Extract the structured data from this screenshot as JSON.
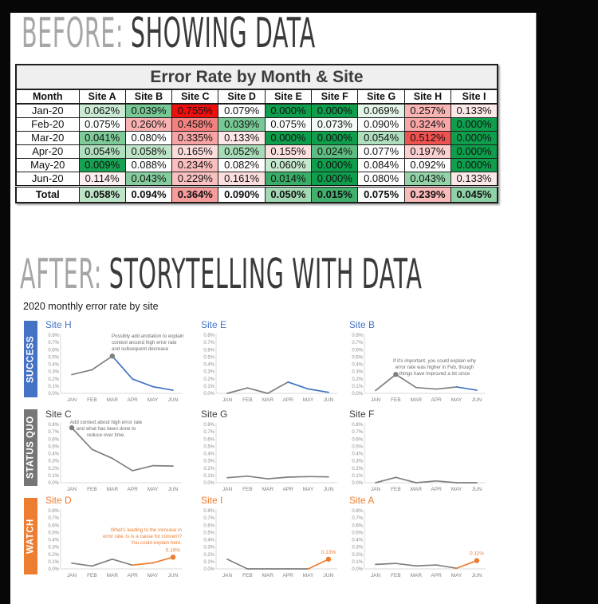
{
  "before": {
    "label_prefix": "BEFORE:",
    "label_main": "SHOWING DATA"
  },
  "after": {
    "label_prefix": "AFTER:",
    "label_main": "STORYTELLING WITH DATA",
    "subtitle": "2020 monthly error rate by site",
    "yticks": [
      "0.8%",
      "0.7%",
      "0.6%",
      "0.5%",
      "0.4%",
      "0.3%",
      "0.2%",
      "0.1%",
      "0.0%"
    ],
    "groups": [
      {
        "label": "SUCCESS",
        "color": "#4472C4"
      },
      {
        "label": "STATUS QUO",
        "color": "#767676"
      },
      {
        "label": "WATCH",
        "color": "#ED7D31"
      }
    ]
  },
  "colors": {
    "success": "#4472C4",
    "status_quo": "#767676",
    "watch": "#ED7D31",
    "line_gray": "#7f7f7f",
    "title_gray": "#404040",
    "annotation_gray": "#6b6b6b"
  },
  "chart_data": [
    {
      "type": "table",
      "title": "Error Rate by Month & Site",
      "columns": [
        "Month",
        "Site A",
        "Site B",
        "Site C",
        "Site D",
        "Site E",
        "Site F",
        "Site G",
        "Site H",
        "Site I"
      ],
      "rows": [
        {
          "label": "Jan-20",
          "cells": [
            {
              "v": "0.062%",
              "bg": "#CBEAD3"
            },
            {
              "v": "0.039%",
              "bg": "#78C896"
            },
            {
              "v": "0.755%",
              "bg": "#EE0E0E"
            },
            {
              "v": "0.079%",
              "bg": "#FFFFFF"
            },
            {
              "v": "0.000%",
              "bg": "#0E9E4C"
            },
            {
              "v": "0.000%",
              "bg": "#0E9E4C"
            },
            {
              "v": "0.069%",
              "bg": "#E3F4E8"
            },
            {
              "v": "0.257%",
              "bg": "#F9B4B4"
            },
            {
              "v": "0.133%",
              "bg": "#FDE8E8"
            }
          ]
        },
        {
          "label": "Feb-20",
          "cells": [
            {
              "v": "0.075%",
              "bg": "#FAFDFB"
            },
            {
              "v": "0.260%",
              "bg": "#F9B2B2"
            },
            {
              "v": "0.458%",
              "bg": "#F48080"
            },
            {
              "v": "0.039%",
              "bg": "#78C896"
            },
            {
              "v": "0.075%",
              "bg": "#FAFDFB"
            },
            {
              "v": "0.073%",
              "bg": "#F0F9F3"
            },
            {
              "v": "0.090%",
              "bg": "#FFFFFF"
            },
            {
              "v": "0.324%",
              "bg": "#F8A6A6"
            },
            {
              "v": "0.000%",
              "bg": "#0E9E4C"
            }
          ]
        },
        {
          "label": "Mar-20",
          "cells": [
            {
              "v": "0.041%",
              "bg": "#7ECA99"
            },
            {
              "v": "0.080%",
              "bg": "#FFFFFF"
            },
            {
              "v": "0.335%",
              "bg": "#F8A4A4"
            },
            {
              "v": "0.133%",
              "bg": "#FDE8E8"
            },
            {
              "v": "0.000%",
              "bg": "#0E9E4C"
            },
            {
              "v": "0.000%",
              "bg": "#0E9E4C"
            },
            {
              "v": "0.054%",
              "bg": "#B0DFBE"
            },
            {
              "v": "0.512%",
              "bg": "#EF5350"
            },
            {
              "v": "0.000%",
              "bg": "#0E9E4C"
            }
          ]
        },
        {
          "label": "Apr-20",
          "cells": [
            {
              "v": "0.054%",
              "bg": "#B0DFBE"
            },
            {
              "v": "0.058%",
              "bg": "#BFE5C9"
            },
            {
              "v": "0.165%",
              "bg": "#FDDCDC"
            },
            {
              "v": "0.052%",
              "bg": "#A8DCB8"
            },
            {
              "v": "0.155%",
              "bg": "#FDE0E0"
            },
            {
              "v": "0.024%",
              "bg": "#5DBD80"
            },
            {
              "v": "0.077%",
              "bg": "#FFFFFF"
            },
            {
              "v": "0.197%",
              "bg": "#FCD0D0"
            },
            {
              "v": "0.000%",
              "bg": "#0E9E4C"
            }
          ]
        },
        {
          "label": "May-20",
          "cells": [
            {
              "v": "0.009%",
              "bg": "#17A253"
            },
            {
              "v": "0.088%",
              "bg": "#FFFFFF"
            },
            {
              "v": "0.234%",
              "bg": "#FABEBE"
            },
            {
              "v": "0.082%",
              "bg": "#FFFFFF"
            },
            {
              "v": "0.060%",
              "bg": "#C6E8CE"
            },
            {
              "v": "0.000%",
              "bg": "#0E9E4C"
            },
            {
              "v": "0.084%",
              "bg": "#FFFFFF"
            },
            {
              "v": "0.092%",
              "bg": "#FFFEFE"
            },
            {
              "v": "0.000%",
              "bg": "#0E9E4C"
            }
          ]
        },
        {
          "label": "Jun-20",
          "cells": [
            {
              "v": "0.114%",
              "bg": "#FEF0F0"
            },
            {
              "v": "0.043%",
              "bg": "#85CD9E"
            },
            {
              "v": "0.229%",
              "bg": "#FAC0C0"
            },
            {
              "v": "0.161%",
              "bg": "#FDDEDE"
            },
            {
              "v": "0.014%",
              "bg": "#3AAE68"
            },
            {
              "v": "0.000%",
              "bg": "#0E9E4C"
            },
            {
              "v": "0.080%",
              "bg": "#FFFFFF"
            },
            {
              "v": "0.043%",
              "bg": "#92D3A8"
            },
            {
              "v": "0.133%",
              "bg": "#FDE8E8"
            }
          ]
        },
        {
          "label": "Total",
          "is_total": true,
          "cells": [
            {
              "v": "0.058%",
              "bg": "#BFE5C9"
            },
            {
              "v": "0.094%",
              "bg": "#FFFCFC"
            },
            {
              "v": "0.364%",
              "bg": "#F79C9C"
            },
            {
              "v": "0.090%",
              "bg": "#FFFFFF"
            },
            {
              "v": "0.050%",
              "bg": "#A2D9B4"
            },
            {
              "v": "0.015%",
              "bg": "#40B06C"
            },
            {
              "v": "0.075%",
              "bg": "#FAFDFB"
            },
            {
              "v": "0.239%",
              "bg": "#FABBBB"
            },
            {
              "v": "0.045%",
              "bg": "#8ED1A5"
            }
          ]
        }
      ]
    },
    {
      "type": "line",
      "title": "Site H",
      "group": "SUCCESS",
      "title_color": "#4472C4",
      "x": [
        "JAN",
        "FEB",
        "MAR",
        "APR",
        "MAY",
        "JUN"
      ],
      "values": [
        0.257,
        0.324,
        0.512,
        0.197,
        0.092,
        0.043
      ],
      "ylim": [
        0,
        0.8
      ],
      "ylabel": "",
      "xlabel": "",
      "highlight_from": 2,
      "highlight_color": "#4472C4",
      "marker_index": 2,
      "marker_color": "#7f7f7f",
      "value_label": null,
      "annotation": {
        "lines": [
          "Possibly add anotation to explain",
          "context around high error rate",
          "and subsequent decrease"
        ],
        "color": "#6b6b6b"
      }
    },
    {
      "type": "line",
      "title": "Site E",
      "group": "SUCCESS",
      "title_color": "#4472C4",
      "x": [
        "JAN",
        "FEB",
        "MAR",
        "APR",
        "MAY",
        "JUN"
      ],
      "values": [
        0.0,
        0.075,
        0.0,
        0.155,
        0.06,
        0.014
      ],
      "ylim": [
        0,
        0.8
      ],
      "ylabel": "",
      "xlabel": "",
      "highlight_from": 3,
      "highlight_color": "#4472C4",
      "marker_index": null,
      "marker_color": null,
      "value_label": null,
      "annotation": null
    },
    {
      "type": "line",
      "title": "Site B",
      "group": "SUCCESS",
      "title_color": "#4472C4",
      "x": [
        "JAN",
        "FEB",
        "MAR",
        "APR",
        "MAY",
        "JUN"
      ],
      "values": [
        0.039,
        0.26,
        0.08,
        0.058,
        0.088,
        0.043
      ],
      "ylim": [
        0,
        0.8
      ],
      "ylabel": "",
      "xlabel": "",
      "highlight_from": 4,
      "highlight_color": "#4472C4",
      "marker_index": 1,
      "marker_color": "#7f7f7f",
      "value_label": null,
      "annotation": {
        "lines": [
          "If it's important, you could explain why",
          "error rate was higher in Feb, though",
          "things have improved a lot since"
        ],
        "color": "#6b6b6b"
      }
    },
    {
      "type": "line",
      "title": "Site C",
      "group": "STATUS QUO",
      "title_color": "#404040",
      "x": [
        "JAN",
        "FEB",
        "MAR",
        "APR",
        "MAY",
        "JUN"
      ],
      "values": [
        0.755,
        0.458,
        0.335,
        0.165,
        0.234,
        0.229
      ],
      "ylim": [
        0,
        0.8
      ],
      "ylabel": "",
      "xlabel": "",
      "highlight_from": null,
      "highlight_color": null,
      "marker_index": 0,
      "marker_color": "#7f7f7f",
      "value_label": null,
      "annotation": {
        "lines": [
          "Add context about high error rate",
          "and what has been done to",
          "reduce over time."
        ],
        "color": "#6b6b6b"
      }
    },
    {
      "type": "line",
      "title": "Site G",
      "group": "STATUS QUO",
      "title_color": "#404040",
      "x": [
        "JAN",
        "FEB",
        "MAR",
        "APR",
        "MAY",
        "JUN"
      ],
      "values": [
        0.069,
        0.09,
        0.054,
        0.077,
        0.084,
        0.08
      ],
      "ylim": [
        0,
        0.8
      ],
      "ylabel": "",
      "xlabel": "",
      "highlight_from": null,
      "highlight_color": null,
      "marker_index": null,
      "marker_color": null,
      "value_label": null,
      "annotation": null
    },
    {
      "type": "line",
      "title": "Site F",
      "group": "STATUS QUO",
      "title_color": "#404040",
      "x": [
        "JAN",
        "FEB",
        "MAR",
        "APR",
        "MAY",
        "JUN"
      ],
      "values": [
        0.0,
        0.073,
        0.0,
        0.024,
        0.0,
        0.0
      ],
      "ylim": [
        0,
        0.8
      ],
      "ylabel": "",
      "xlabel": "",
      "highlight_from": null,
      "highlight_color": null,
      "marker_index": null,
      "marker_color": null,
      "value_label": null,
      "annotation": null
    },
    {
      "type": "line",
      "title": "Site D",
      "group": "WATCH",
      "title_color": "#ED7D31",
      "x": [
        "JAN",
        "FEB",
        "MAR",
        "APR",
        "MAY",
        "JUN"
      ],
      "values": [
        0.079,
        0.039,
        0.133,
        0.052,
        0.082,
        0.161
      ],
      "ylim": [
        0,
        0.8
      ],
      "ylabel": "",
      "xlabel": "",
      "highlight_from": 3,
      "highlight_color": "#ED7D31",
      "marker_index": 5,
      "marker_color": "#ED7D31",
      "value_label": "0.16%",
      "annotation": {
        "lines": [
          "What's leading to the increase in",
          "error rate, is is a cause for concern?",
          "You could explain here."
        ],
        "color": "#ED7D31"
      }
    },
    {
      "type": "line",
      "title": "Site I",
      "group": "WATCH",
      "title_color": "#ED7D31",
      "x": [
        "JAN",
        "FEB",
        "MAR",
        "APR",
        "MAY",
        "JUN"
      ],
      "values": [
        0.133,
        0.0,
        0.0,
        0.0,
        0.0,
        0.133
      ],
      "ylim": [
        0,
        0.8
      ],
      "ylabel": "",
      "xlabel": "",
      "highlight_from": 4,
      "highlight_color": "#ED7D31",
      "marker_index": 5,
      "marker_color": "#ED7D31",
      "value_label": "0.13%",
      "annotation": null
    },
    {
      "type": "line",
      "title": "Site A",
      "group": "WATCH",
      "title_color": "#ED7D31",
      "x": [
        "JAN",
        "FEB",
        "MAR",
        "APR",
        "MAY",
        "JUN"
      ],
      "values": [
        0.062,
        0.075,
        0.041,
        0.054,
        0.009,
        0.114
      ],
      "ylim": [
        0,
        0.8
      ],
      "ylabel": "",
      "xlabel": "",
      "highlight_from": 4,
      "highlight_color": "#ED7D31",
      "marker_index": 5,
      "marker_color": "#ED7D31",
      "value_label": "0.11%",
      "annotation": null
    }
  ]
}
